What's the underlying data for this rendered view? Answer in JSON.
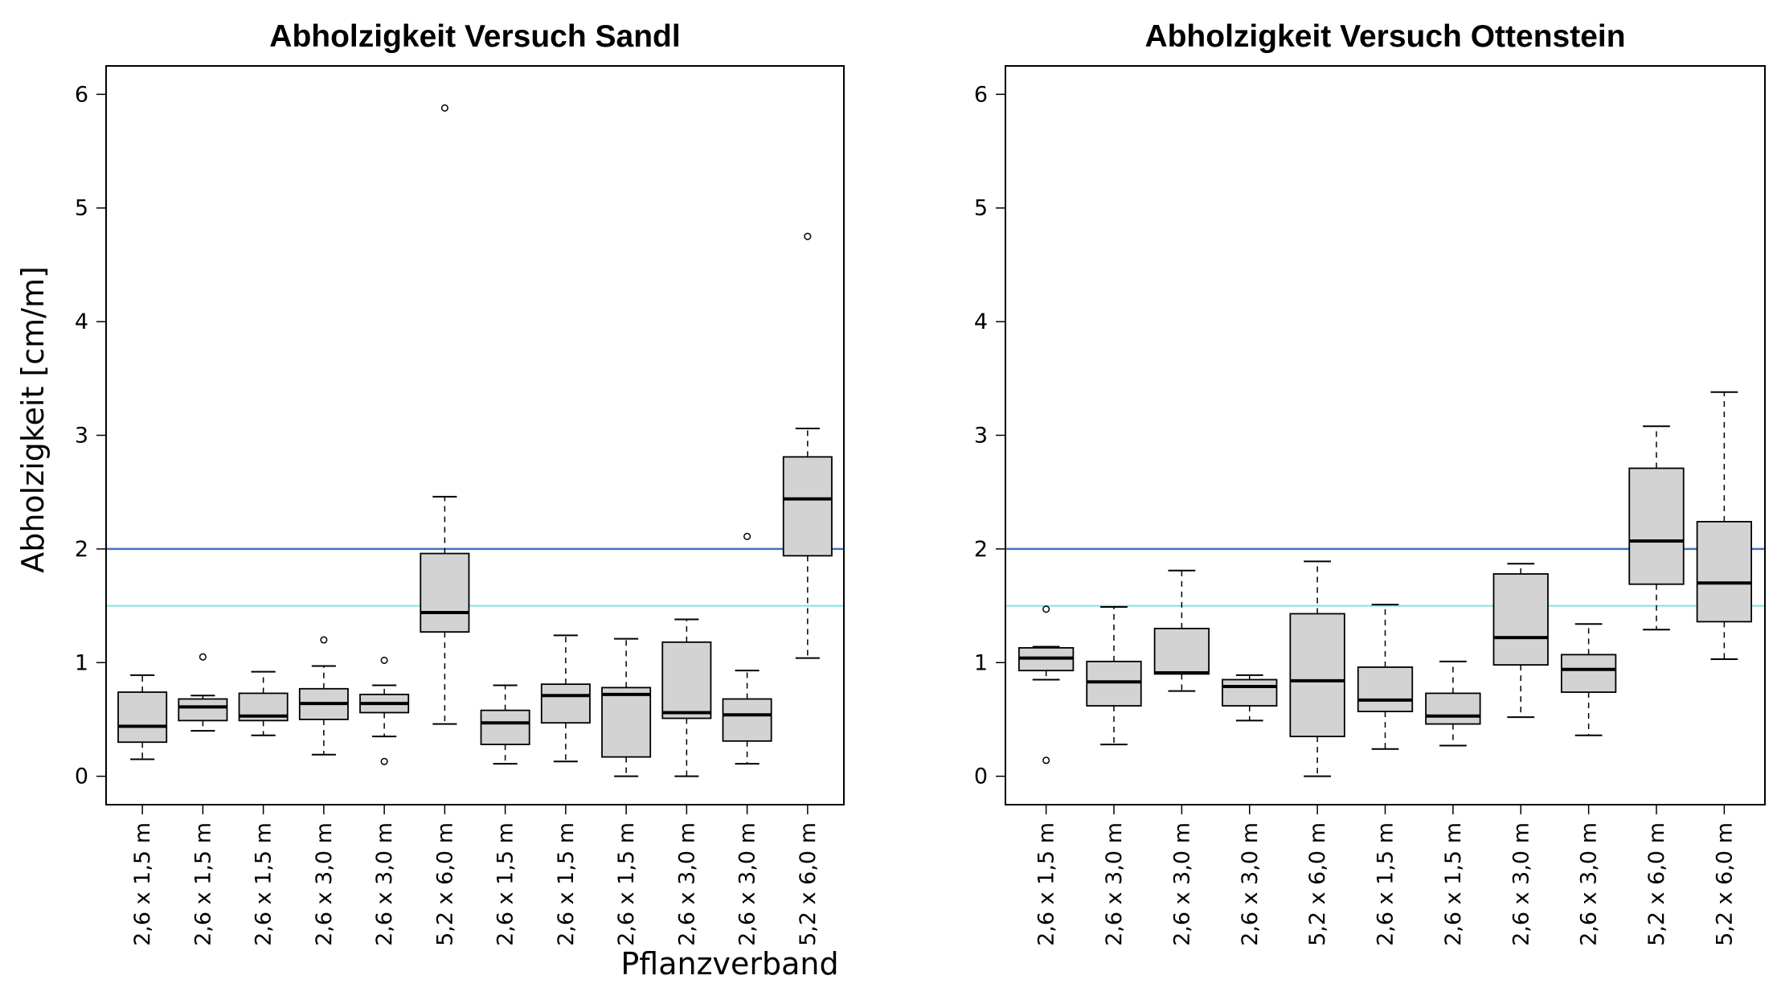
{
  "xlabel": "Pflanzverband",
  "ylabel": "Abholzigkeit [cm/m]",
  "chart_data": [
    {
      "type": "boxplot",
      "title": "Abholzigkeit Versuch Sandl",
      "ylim": [
        -0.25,
        6.25
      ],
      "yticks": [
        0,
        1,
        2,
        3,
        4,
        5,
        6
      ],
      "reference_lines": [
        {
          "value": 2.0,
          "color": "#4472c4"
        },
        {
          "value": 1.5,
          "color": "#7fe3e0"
        }
      ],
      "categories": [
        "2,6 x 1,5 m",
        "2,6 x 1,5 m",
        "2,6 x 1,5 m",
        "2,6 x 3,0 m",
        "2,6 x 3,0 m",
        "5,2 x 6,0 m",
        "2,6 x 1,5 m",
        "2,6 x 1,5 m",
        "2,6 x 1,5 m",
        "2,6 x 3,0 m",
        "2,6 x 3,0 m",
        "5,2 x 6,0 m"
      ],
      "boxes": [
        {
          "whislo": 0.15,
          "q1": 0.3,
          "med": 0.44,
          "q3": 0.74,
          "whishi": 0.89,
          "fliers": []
        },
        {
          "whislo": 0.4,
          "q1": 0.49,
          "med": 0.61,
          "q3": 0.68,
          "whishi": 0.71,
          "fliers": [
            1.05
          ]
        },
        {
          "whislo": 0.36,
          "q1": 0.49,
          "med": 0.53,
          "q3": 0.73,
          "whishi": 0.92,
          "fliers": []
        },
        {
          "whislo": 0.19,
          "q1": 0.5,
          "med": 0.64,
          "q3": 0.77,
          "whishi": 0.97,
          "fliers": [
            1.2
          ]
        },
        {
          "whislo": 0.35,
          "q1": 0.56,
          "med": 0.64,
          "q3": 0.72,
          "whishi": 0.8,
          "fliers": [
            1.02,
            0.13
          ]
        },
        {
          "whislo": 0.46,
          "q1": 1.27,
          "med": 1.44,
          "q3": 1.96,
          "whishi": 2.46,
          "fliers": [
            5.88
          ]
        },
        {
          "whislo": 0.11,
          "q1": 0.28,
          "med": 0.47,
          "q3": 0.58,
          "whishi": 0.8,
          "fliers": []
        },
        {
          "whislo": 0.13,
          "q1": 0.47,
          "med": 0.71,
          "q3": 0.81,
          "whishi": 1.24,
          "fliers": []
        },
        {
          "whislo": 0.0,
          "q1": 0.17,
          "med": 0.72,
          "q3": 0.78,
          "whishi": 1.21,
          "fliers": []
        },
        {
          "whislo": 0.0,
          "q1": 0.51,
          "med": 0.56,
          "q3": 1.18,
          "whishi": 1.38,
          "fliers": []
        },
        {
          "whislo": 0.11,
          "q1": 0.31,
          "med": 0.54,
          "q3": 0.68,
          "whishi": 0.93,
          "fliers": [
            2.11
          ]
        },
        {
          "whislo": 1.04,
          "q1": 1.94,
          "med": 2.44,
          "q3": 2.81,
          "whishi": 3.06,
          "fliers": [
            4.75
          ]
        }
      ]
    },
    {
      "type": "boxplot",
      "title": "Abholzigkeit Versuch Ottenstein",
      "ylim": [
        -0.25,
        6.25
      ],
      "yticks": [
        0,
        1,
        2,
        3,
        4,
        5,
        6
      ],
      "reference_lines": [
        {
          "value": 2.0,
          "color": "#4472c4"
        },
        {
          "value": 1.5,
          "color": "#7fe3e0"
        }
      ],
      "categories": [
        "2,6 x 1,5 m",
        "2,6 x 3,0 m",
        "2,6 x 3,0 m",
        "2,6 x 3,0 m",
        "5,2 x 6,0 m",
        "2,6 x 1,5 m",
        "2,6 x 1,5 m",
        "2,6 x 3,0 m",
        "2,6 x 3,0 m",
        "5,2 x 6,0 m",
        "5,2 x 6,0 m"
      ],
      "boxes": [
        {
          "whislo": 0.85,
          "q1": 0.93,
          "med": 1.04,
          "q3": 1.13,
          "whishi": 1.14,
          "fliers": [
            1.47,
            0.14
          ]
        },
        {
          "whislo": 0.28,
          "q1": 0.62,
          "med": 0.83,
          "q3": 1.01,
          "whishi": 1.49,
          "fliers": []
        },
        {
          "whislo": 0.75,
          "q1": 0.9,
          "med": 0.91,
          "q3": 1.3,
          "whishi": 1.81,
          "fliers": []
        },
        {
          "whislo": 0.49,
          "q1": 0.62,
          "med": 0.79,
          "q3": 0.85,
          "whishi": 0.89,
          "fliers": []
        },
        {
          "whislo": 0.0,
          "q1": 0.35,
          "med": 0.84,
          "q3": 1.43,
          "whishi": 1.89,
          "fliers": []
        },
        {
          "whislo": 0.24,
          "q1": 0.57,
          "med": 0.67,
          "q3": 0.96,
          "whishi": 1.51,
          "fliers": []
        },
        {
          "whislo": 0.27,
          "q1": 0.46,
          "med": 0.53,
          "q3": 0.73,
          "whishi": 1.01,
          "fliers": []
        },
        {
          "whislo": 0.52,
          "q1": 0.98,
          "med": 1.22,
          "q3": 1.78,
          "whishi": 1.87,
          "fliers": []
        },
        {
          "whislo": 0.36,
          "q1": 0.74,
          "med": 0.94,
          "q3": 1.07,
          "whishi": 1.34,
          "fliers": []
        },
        {
          "whislo": 1.29,
          "q1": 1.69,
          "med": 2.07,
          "q3": 2.71,
          "whishi": 3.08,
          "fliers": []
        },
        {
          "whislo": 1.03,
          "q1": 1.36,
          "med": 1.7,
          "q3": 2.24,
          "whishi": 3.38,
          "fliers": []
        }
      ]
    }
  ],
  "style": {
    "box_fill": "#d3d3d3",
    "line_color": "#000000",
    "blue_line": "#4472c4",
    "cyan_line": "#7fe3e0"
  }
}
